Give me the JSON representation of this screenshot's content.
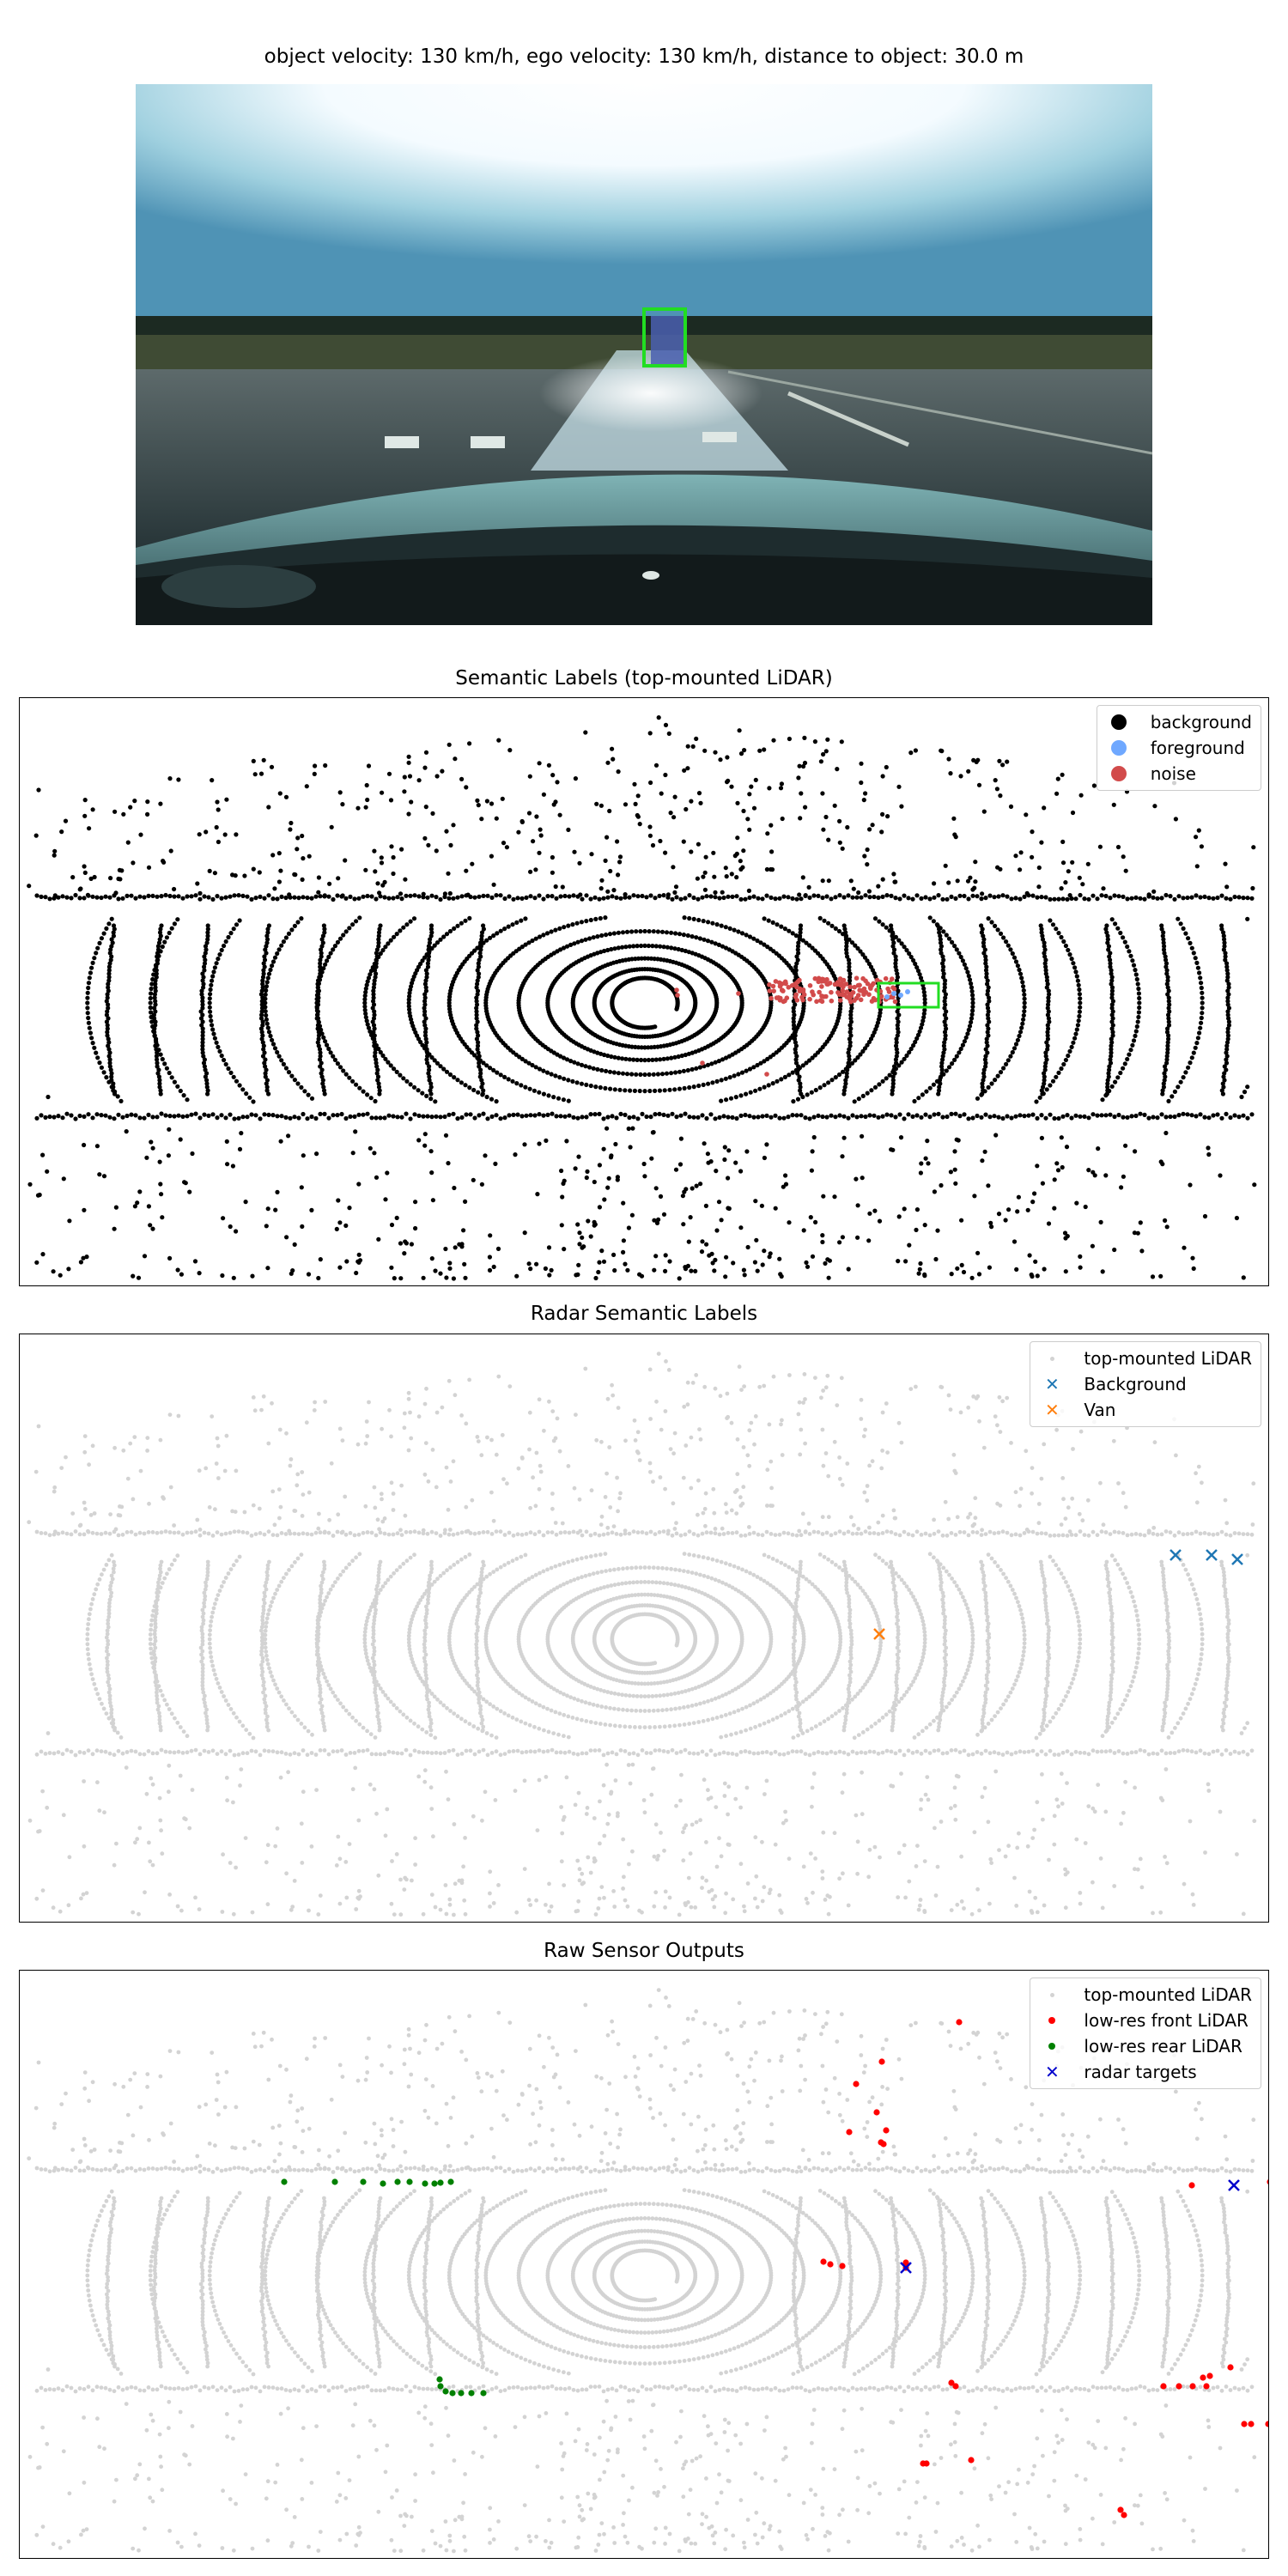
{
  "camera": {
    "title": "object velocity: 130 km/h, ego velocity: 130 km/h, distance to object: 30.0 m"
  },
  "chart_data": [
    {
      "type": "scatter",
      "title": "Semantic Labels (top-mounted LiDAR)",
      "legend_position": "top-right",
      "grid": false,
      "axes_visible": false,
      "legend": [
        {
          "label": "background",
          "color": "#000000",
          "marker": "circle"
        },
        {
          "label": "foreground",
          "color": "#6fa8ff",
          "marker": "circle"
        },
        {
          "label": "noise",
          "color": "#d24b4b",
          "marker": "circle"
        }
      ],
      "object_box_color": "#22dd22"
    },
    {
      "type": "scatter",
      "title": "Radar Semantic Labels",
      "legend_position": "top-right",
      "grid": false,
      "axes_visible": false,
      "legend": [
        {
          "label": "top-mounted LiDAR",
          "color": "#d3d3d3",
          "marker": "point"
        },
        {
          "label": "Background",
          "color": "#1f77b4",
          "marker": "x"
        },
        {
          "label": "Van",
          "color": "#ff7f0e",
          "marker": "x"
        }
      ]
    },
    {
      "type": "scatter",
      "title": "Raw Sensor Outputs",
      "legend_position": "top-right",
      "grid": false,
      "axes_visible": false,
      "legend": [
        {
          "label": "top-mounted LiDAR",
          "color": "#d3d3d3",
          "marker": "point"
        },
        {
          "label": "low-res front LiDAR",
          "color": "#ff0000",
          "marker": "circle"
        },
        {
          "label": "low-res rear LiDAR",
          "color": "#008000",
          "marker": "circle"
        },
        {
          "label": "radar targets",
          "color": "#0000cc",
          "marker": "x"
        }
      ]
    }
  ]
}
